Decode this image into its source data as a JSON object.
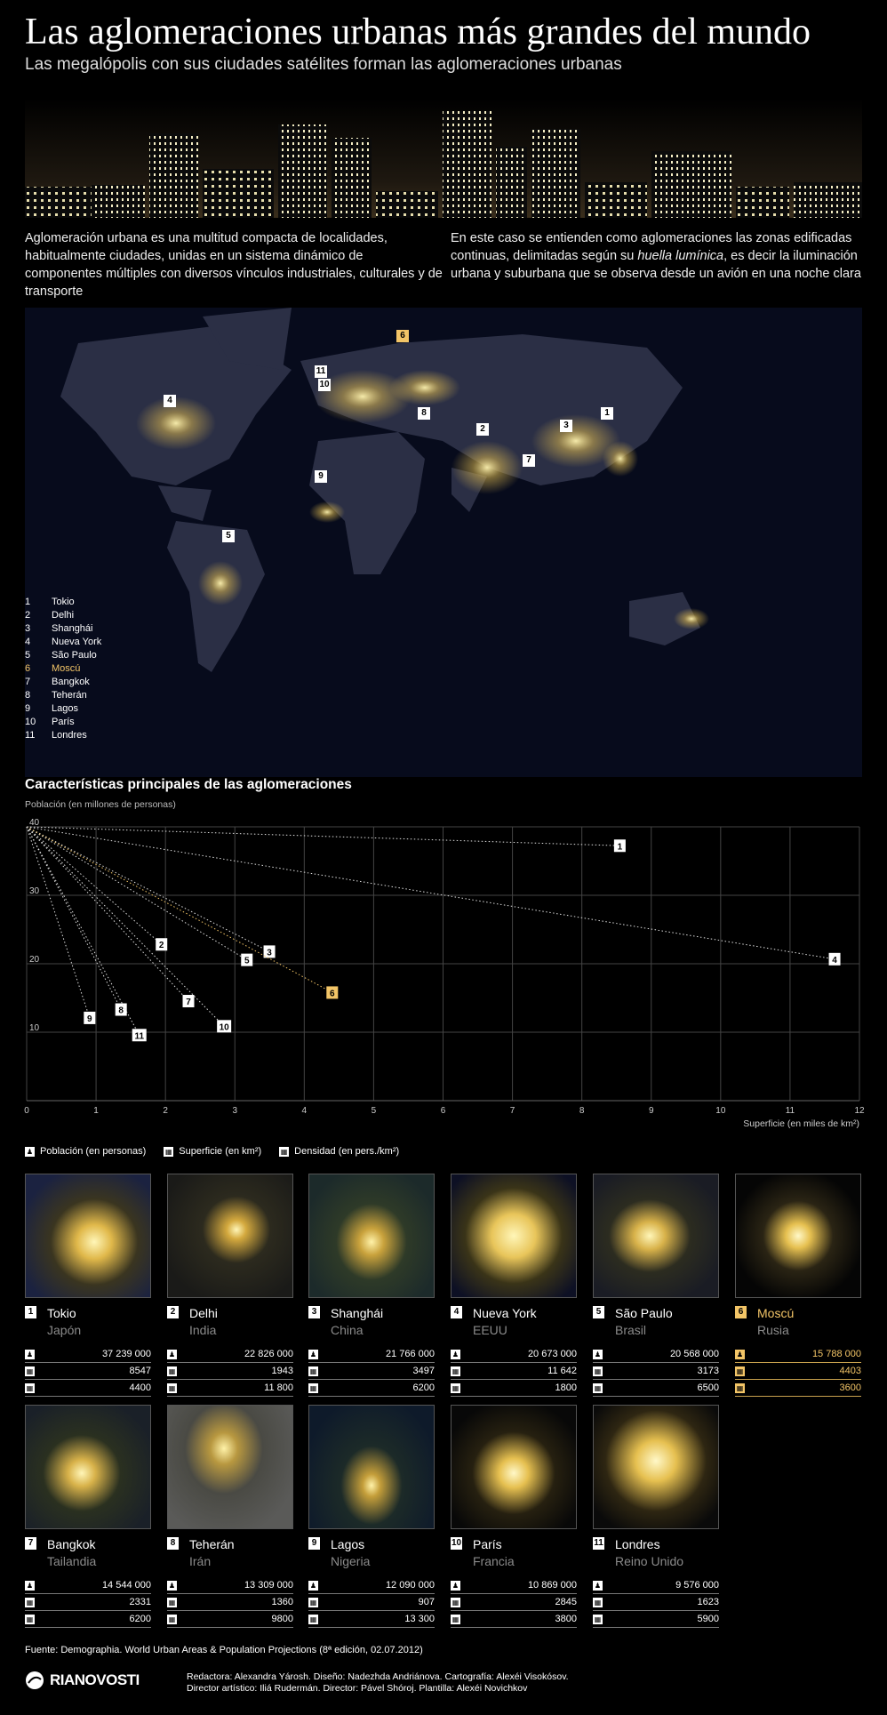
{
  "title": "Las aglomeraciones urbanas más grandes del mundo",
  "subtitle": "Las megalópolis con sus ciudades satélites forman las aglomeraciones urbanas",
  "intro_left": "Aglomeración urbana es una multitud compacta de localidades, habitualmente ciudades, unidas en un sistema dinámico de componentes múltiples con diversos vínculos industriales, culturales y de transporte",
  "intro_right_1": "En este caso se entienden como aglomeraciones las zonas edificadas continuas, delimitadas según su ",
  "intro_right_em": "huella lumínica",
  "intro_right_2": ", es decir la iluminación urbana y suburbana que se observa desde un avión en una noche clara",
  "map_legend": [
    {
      "n": "1",
      "name": "Tokio"
    },
    {
      "n": "2",
      "name": "Delhi"
    },
    {
      "n": "3",
      "name": "Shanghái"
    },
    {
      "n": "4",
      "name": "Nueva York"
    },
    {
      "n": "5",
      "name": "São Paulo"
    },
    {
      "n": "6",
      "name": "Moscú"
    },
    {
      "n": "7",
      "name": "Bangkok"
    },
    {
      "n": "8",
      "name": "Teherán"
    },
    {
      "n": "9",
      "name": "Lagos"
    },
    {
      "n": "10",
      "name": "París"
    },
    {
      "n": "11",
      "name": "Londres"
    }
  ],
  "highlight_color": "#f3c567",
  "chart_title": "Características principales de las aglomeraciones",
  "chart_data": {
    "type": "scatter",
    "ylabel": "Población (en millones de personas)",
    "xlabel": "Superficie (en miles de km²)",
    "xlim": [
      0,
      12
    ],
    "ylim": [
      0,
      40
    ],
    "xticks": [
      0,
      1,
      2,
      3,
      4,
      5,
      6,
      7,
      8,
      9,
      10,
      11,
      12
    ],
    "yticks": [
      10,
      20,
      30,
      40
    ],
    "grid": true,
    "origin_lines": true,
    "highlight": "6",
    "points": [
      {
        "label": "1",
        "x": 8.547,
        "y": 37.239
      },
      {
        "label": "2",
        "x": 1.943,
        "y": 22.826
      },
      {
        "label": "3",
        "x": 3.497,
        "y": 21.766
      },
      {
        "label": "4",
        "x": 11.642,
        "y": 20.673
      },
      {
        "label": "5",
        "x": 3.173,
        "y": 20.568
      },
      {
        "label": "6",
        "x": 4.403,
        "y": 15.788
      },
      {
        "label": "7",
        "x": 2.331,
        "y": 14.544
      },
      {
        "label": "8",
        "x": 1.36,
        "y": 13.309
      },
      {
        "label": "9",
        "x": 0.907,
        "y": 12.09
      },
      {
        "label": "10",
        "x": 2.845,
        "y": 10.869
      },
      {
        "label": "11",
        "x": 1.623,
        "y": 9.576
      }
    ]
  },
  "icon_legend": {
    "population": "Población (en personas)",
    "area": "Superficie (en km²)",
    "density": "Densidad (en pers./km²)"
  },
  "cities": [
    {
      "n": "1",
      "city": "Tokio",
      "country": "Japón",
      "population": "37 239 000",
      "area": "8547",
      "density": "4400"
    },
    {
      "n": "2",
      "city": "Delhi",
      "country": "India",
      "population": "22 826 000",
      "area": "1943",
      "density": "11 800"
    },
    {
      "n": "3",
      "city": "Shanghái",
      "country": "China",
      "population": "21 766 000",
      "area": "3497",
      "density": "6200"
    },
    {
      "n": "4",
      "city": "Nueva York",
      "country": "EEUU",
      "population": "20 673 000",
      "area": "11 642",
      "density": "1800"
    },
    {
      "n": "5",
      "city": "São Paulo",
      "country": "Brasil",
      "population": "20 568 000",
      "area": "3173",
      "density": "6500"
    },
    {
      "n": "6",
      "city": "Moscú",
      "country": "Rusia",
      "population": "15 788 000",
      "area": "4403",
      "density": "3600",
      "highlight": true
    },
    {
      "n": "7",
      "city": "Bangkok",
      "country": "Tailandia",
      "population": "14 544 000",
      "area": "2331",
      "density": "6200"
    },
    {
      "n": "8",
      "city": "Teherán",
      "country": "Irán",
      "population": "13 309 000",
      "area": "1360",
      "density": "9800"
    },
    {
      "n": "9",
      "city": "Lagos",
      "country": "Nigeria",
      "population": "12 090 000",
      "area": "907",
      "density": "13 300"
    },
    {
      "n": "10",
      "city": "París",
      "country": "Francia",
      "population": "10 869 000",
      "area": "2845",
      "density": "3800"
    },
    {
      "n": "11",
      "city": "Londres",
      "country": "Reino Unido",
      "population": "9 576 000",
      "area": "1623",
      "density": "5900"
    }
  ],
  "source": "Fuente: Demographia. World Urban Areas & Population Projections (8ª edición, 02.07.2012)",
  "logo": "RIANOVOSTI",
  "credits_1": "Redactora: Alexandra Yárosh. Diseño: Nadezhda Andriánova. Cartografía: Alexéi Visokósov.",
  "credits_2": "Director artístico: Iliá Rudermán. Director: Pável Shóroj. Plantilla: Alexéi Novichkov"
}
